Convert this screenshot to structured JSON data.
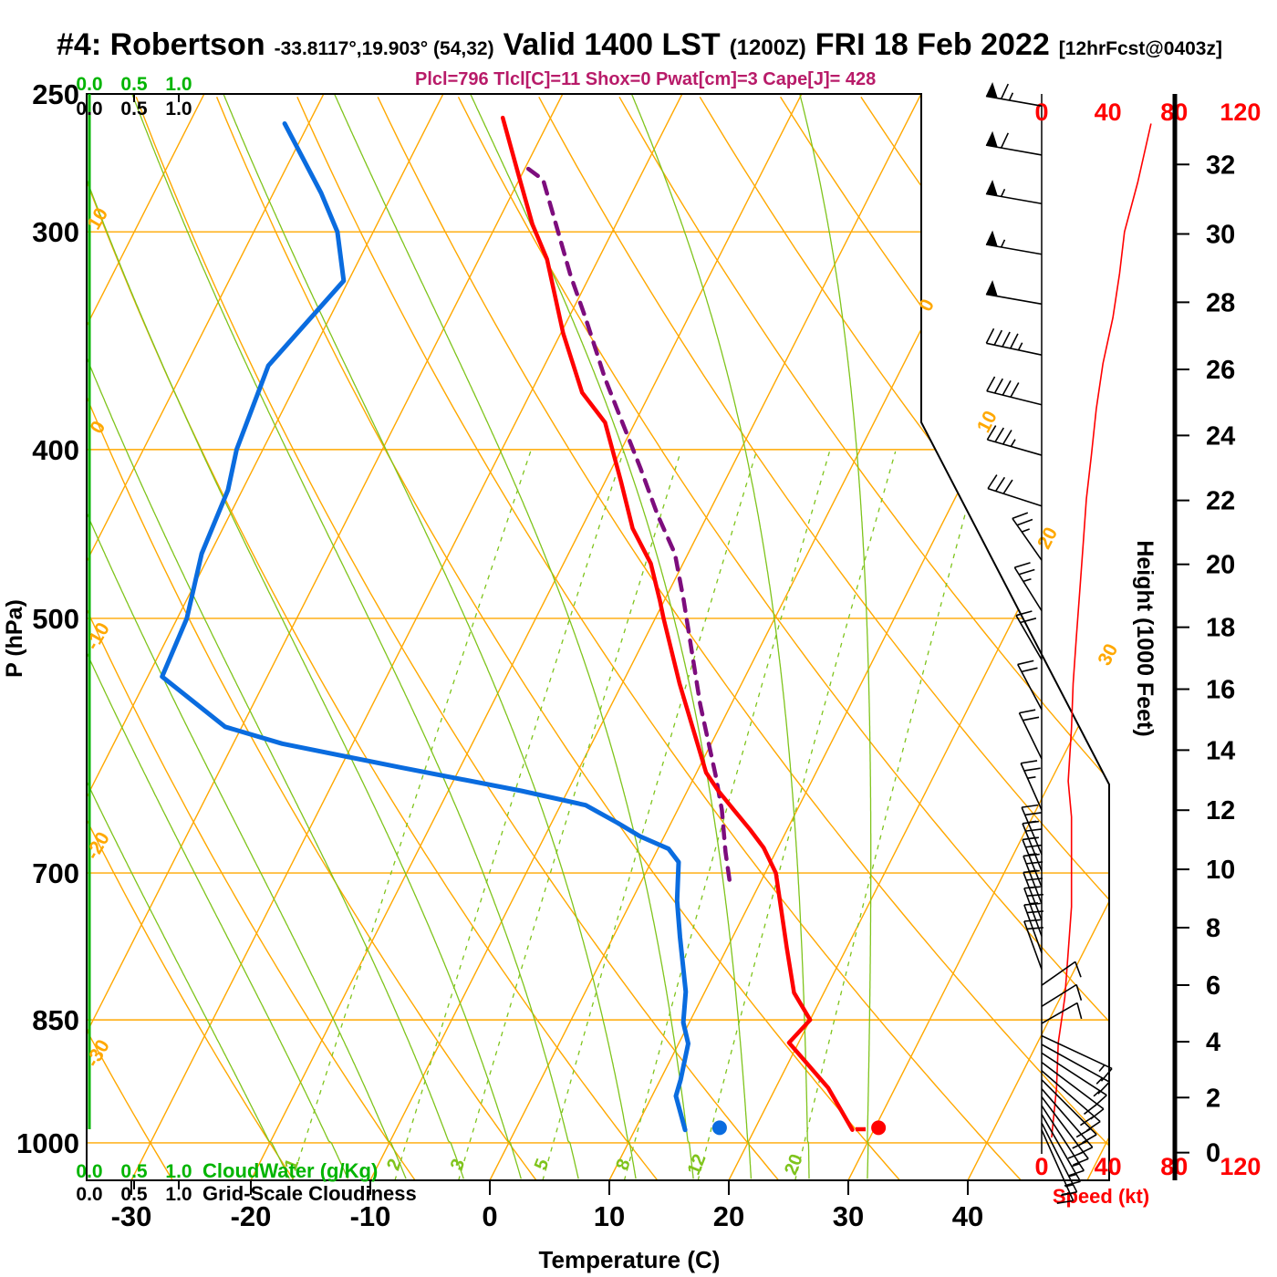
{
  "title": {
    "station": "#4: Robertson",
    "coords": "-33.8117°,19.903° (54,32)",
    "valid": "Valid 1400 LST",
    "zulu": "(1200Z)",
    "date": "FRI 18 Feb 2022",
    "fcst": "[12hrFcst@0403z]"
  },
  "stats": {
    "text": "Plcl=796 Tlcl[C]=11 Shox=0 Pwat[cm]=3 Cape[J]= 428"
  },
  "colors": {
    "orange": "#ffa800",
    "grid_green": "#7fc41c",
    "axis_green": "#00b400",
    "temp_red": "#ff0000",
    "dewp_blue": "#0a6cdf",
    "parcel_purple": "#7d0d7d",
    "stats_pink": "#b81b69",
    "speed_red": "#ff0000",
    "black": "#000000"
  },
  "axes": {
    "pressure": {
      "label": "P (hPa)",
      "ticks": [
        250,
        300,
        400,
        500,
        700,
        850,
        1000
      ]
    },
    "temperature": {
      "label": "Temperature (C)",
      "ticks": [
        -30,
        -20,
        -10,
        0,
        10,
        20,
        30,
        40
      ]
    },
    "height": {
      "label": "Height (1000 Feet)",
      "ticks": [
        0,
        2,
        4,
        6,
        8,
        10,
        12,
        14,
        16,
        18,
        20,
        22,
        24,
        26,
        28,
        30,
        32
      ]
    },
    "speed": {
      "label": "Speed (kt)",
      "ticks": [
        0,
        40,
        80,
        120
      ]
    },
    "cloudwater": {
      "label": "CloudWater (g/Kg)",
      "ticks": [
        "0.0",
        "0.5",
        "1.0"
      ]
    },
    "cloudiness": {
      "label": "Grid-Scale Cloudiness",
      "ticks": [
        "0.0",
        "0.5",
        "1.0"
      ]
    }
  },
  "chart_data": {
    "type": "skewt-logp-sounding",
    "pressure_range_hpa": [
      250,
      1051
    ],
    "isotherms_c": {
      "min": -80,
      "max": 50,
      "step": 10,
      "right_labels": [
        0,
        10,
        20,
        30
      ]
    },
    "dry_adiabats_c": {
      "min": -40,
      "max": 110,
      "step": 10,
      "left_labels": [
        10,
        0,
        -10,
        -20,
        -30
      ]
    },
    "moist_adiabats_c": [
      -20,
      -15,
      -10,
      -5,
      0,
      5,
      10,
      15,
      20,
      25,
      30
    ],
    "mixing_ratio_gkg": [
      1,
      2,
      3,
      5,
      8,
      12,
      20
    ],
    "temperature_profile": [
      [
        983,
        28.2
      ],
      [
        930,
        24.4
      ],
      [
        876,
        19.2
      ],
      [
        850,
        20.0
      ],
      [
        820,
        17.5
      ],
      [
        773,
        15.0
      ],
      [
        700,
        10.9
      ],
      [
        677,
        8.8
      ],
      [
        661,
        6.9
      ],
      [
        644,
        4.7
      ],
      [
        628,
        2.6
      ],
      [
        613,
        0.8
      ],
      [
        545,
        -5.2
      ],
      [
        500,
        -9.3
      ],
      [
        488,
        -10.4
      ],
      [
        465,
        -12.7
      ],
      [
        444,
        -15.7
      ],
      [
        417,
        -18.7
      ],
      [
        386,
        -22.5
      ],
      [
        371,
        -25.7
      ],
      [
        343,
        -29.8
      ],
      [
        311,
        -34.3
      ],
      [
        297,
        -37.0
      ],
      [
        278,
        -40.3
      ],
      [
        258,
        -44.0
      ]
    ],
    "dewpoint_profile": [
      [
        983,
        14.2
      ],
      [
        940,
        12.0
      ],
      [
        920,
        11.7
      ],
      [
        877,
        10.8
      ],
      [
        853,
        9.5
      ],
      [
        819,
        8.4
      ],
      [
        762,
        5.6
      ],
      [
        726,
        3.8
      ],
      [
        690,
        2.3
      ],
      [
        678,
        0.9
      ],
      [
        667,
        -2.0
      ],
      [
        655,
        -4.5
      ],
      [
        640,
        -7.9
      ],
      [
        628,
        -13.9
      ],
      [
        609,
        -24.9
      ],
      [
        590,
        -35.9
      ],
      [
        577,
        -41.4
      ],
      [
        540,
        -48.8
      ],
      [
        500,
        -49.2
      ],
      [
        459,
        -50.7
      ],
      [
        422,
        -51.2
      ],
      [
        400,
        -52.2
      ],
      [
        358,
        -53.1
      ],
      [
        320,
        -50.4
      ],
      [
        300,
        -53.0
      ],
      [
        285,
        -56.0
      ],
      [
        260,
        -62.0
      ]
    ],
    "parcel_profile": [
      [
        708,
        7.4
      ],
      [
        681,
        5.8
      ],
      [
        644,
        3.7
      ],
      [
        615,
        1.7
      ],
      [
        560,
        -2.6
      ],
      [
        488,
        -8.4
      ],
      [
        459,
        -11.1
      ],
      [
        436,
        -14.2
      ],
      [
        410,
        -17.6
      ],
      [
        385,
        -21.2
      ],
      [
        364,
        -24.4
      ],
      [
        336,
        -28.6
      ],
      [
        318,
        -31.6
      ],
      [
        296,
        -35.2
      ],
      [
        280,
        -38.0
      ],
      [
        276,
        -39.7
      ]
    ],
    "surface_dots": {
      "p": 985,
      "temp_c": 30.3,
      "dewp_c": 17.0
    },
    "speed_profile_kt": [
      [
        260,
        66
      ],
      [
        281,
        58
      ],
      [
        300,
        50
      ],
      [
        317,
        47
      ],
      [
        336,
        43
      ],
      [
        357,
        37
      ],
      [
        379,
        33
      ],
      [
        403,
        30
      ],
      [
        427,
        27
      ],
      [
        454,
        25
      ],
      [
        482,
        23
      ],
      [
        512,
        21
      ],
      [
        545,
        19
      ],
      [
        578,
        18
      ],
      [
        620,
        16
      ],
      [
        650,
        18
      ],
      [
        690,
        18
      ],
      [
        732,
        18
      ],
      [
        777,
        16
      ],
      [
        825,
        14
      ],
      [
        876,
        10
      ],
      [
        930,
        9
      ],
      [
        993,
        6
      ]
    ],
    "wind_barbs": [
      [
        254,
        65,
        170
      ],
      [
        271,
        60,
        170
      ],
      [
        289,
        55,
        170
      ],
      [
        309,
        55,
        170
      ],
      [
        330,
        50,
        170
      ],
      [
        353,
        45,
        168
      ],
      [
        377,
        40,
        166
      ],
      [
        403,
        35,
        164
      ],
      [
        431,
        30,
        162
      ],
      [
        463,
        25,
        125
      ],
      [
        495,
        25,
        122
      ],
      [
        528,
        20,
        120
      ],
      [
        564,
        20,
        118
      ],
      [
        602,
        20,
        116
      ],
      [
        644,
        25,
        114
      ],
      [
        683,
        25,
        113
      ],
      [
        698,
        25,
        112
      ],
      [
        713,
        25,
        112
      ],
      [
        729,
        25,
        111
      ],
      [
        745,
        25,
        111
      ],
      [
        761,
        25,
        110
      ],
      [
        778,
        20,
        110
      ],
      [
        795,
        20,
        110
      ],
      [
        812,
        10,
        35
      ],
      [
        835,
        10,
        32
      ],
      [
        854,
        10,
        30
      ],
      [
        868,
        15,
        -25
      ],
      [
        878,
        15,
        -29
      ],
      [
        888,
        15,
        -33
      ],
      [
        899,
        20,
        -37
      ],
      [
        909,
        20,
        -41
      ],
      [
        920,
        20,
        -45
      ],
      [
        931,
        20,
        -49
      ],
      [
        941,
        20,
        -53
      ],
      [
        952,
        15,
        -57
      ],
      [
        963,
        15,
        -60
      ],
      [
        974,
        15,
        -63
      ],
      [
        983,
        15,
        -66
      ]
    ]
  }
}
